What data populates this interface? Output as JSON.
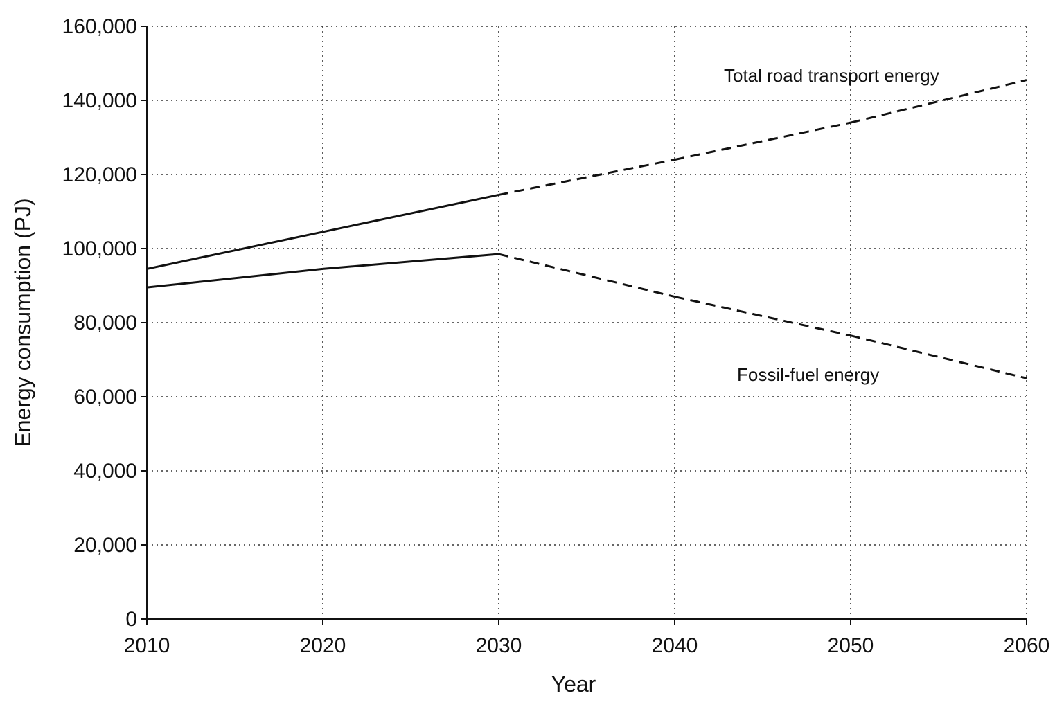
{
  "chart_data": {
    "type": "line",
    "xlabel": "Year",
    "ylabel": "Energy consumption (PJ)",
    "xlim": [
      2010,
      2060
    ],
    "ylim": [
      0,
      160000
    ],
    "xticks": [
      "2010",
      "2020",
      "2030",
      "2040",
      "2050",
      "2060"
    ],
    "yticks": [
      "0",
      "20,000",
      "40,000",
      "60,000",
      "80,000",
      "100,000",
      "120,000",
      "140,000",
      "160,000"
    ],
    "grid": true,
    "series": [
      {
        "name": "Total road transport energy",
        "x": [
          2010,
          2020,
          2030,
          2040,
          2050,
          2060
        ],
        "y": [
          94500,
          104500,
          114500,
          124000,
          134000,
          145500
        ],
        "style": [
          "solid",
          "solid",
          "dashed",
          "dashed",
          "dashed"
        ]
      },
      {
        "name": "Fossil-fuel energy",
        "x": [
          2010,
          2020,
          2030,
          2040,
          2050,
          2060
        ],
        "y": [
          89500,
          94500,
          98500,
          87000,
          76500,
          65000
        ],
        "style": [
          "solid",
          "solid",
          "dashed",
          "dashed",
          "dashed"
        ]
      }
    ]
  }
}
